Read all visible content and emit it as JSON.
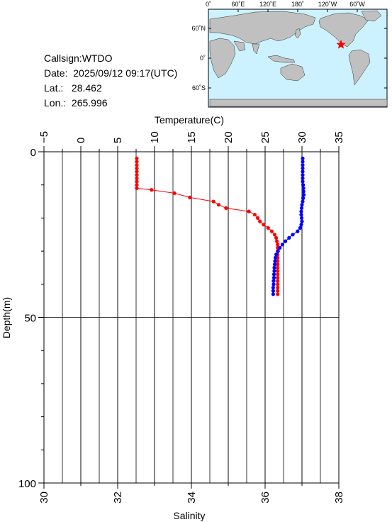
{
  "info": {
    "callsign_label": "Callsign:",
    "callsign": "WTDO",
    "date_label": "Date:",
    "date": "2025/09/12 09:17(UTC)",
    "lat_label": "Lat.:",
    "lat": "28.462",
    "lon_label": "Lon.:",
    "lon": "265.996"
  },
  "map": {
    "top_labels": [
      "0˚",
      "60˚E",
      "120˚E",
      "180˚",
      "120˚W",
      "60˚W"
    ],
    "side_labels": [
      "60˚N",
      "0˚",
      "60˚S"
    ],
    "ocean_color": "#ccf2ff",
    "land_color": "#c0c0c0",
    "marker_color": "#ff0000",
    "marker_icon": "star-icon"
  },
  "chart_data": {
    "type": "line",
    "y_axis": {
      "label": "Depth(m)",
      "range": [
        0,
        100
      ],
      "ticks": [
        "0",
        "50",
        "100"
      ],
      "inverted": true
    },
    "x_top_axis": {
      "label": "Temperature(C)",
      "range": [
        -5,
        35
      ],
      "ticks": [
        "−5",
        "0",
        "5",
        "10",
        "15",
        "20",
        "25",
        "30",
        "35"
      ]
    },
    "x_bottom_axis": {
      "label": "Salinity",
      "range": [
        30,
        38
      ],
      "ticks": [
        "30",
        "32",
        "34",
        "36",
        "38"
      ]
    },
    "grid": true,
    "series": [
      {
        "axis": "top",
        "color": "#ff0000",
        "points": [
          [
            7.6,
            2
          ],
          [
            7.6,
            3
          ],
          [
            7.6,
            4
          ],
          [
            7.6,
            5
          ],
          [
            7.6,
            6
          ],
          [
            7.6,
            7
          ],
          [
            7.6,
            8
          ],
          [
            7.6,
            9
          ],
          [
            7.6,
            10
          ],
          [
            7.6,
            11
          ],
          [
            9.6,
            11.5
          ],
          [
            12.7,
            12.5
          ],
          [
            14.8,
            13.8
          ],
          [
            18.0,
            15.0
          ],
          [
            18.7,
            16.0
          ],
          [
            19.7,
            17.0
          ],
          [
            22.8,
            18.0
          ],
          [
            23.6,
            19.0
          ],
          [
            24.0,
            20.0
          ],
          [
            24.3,
            21.0
          ],
          [
            24.8,
            22.0
          ],
          [
            25.4,
            23.0
          ],
          [
            25.9,
            24.0
          ],
          [
            26.3,
            25.0
          ],
          [
            26.5,
            26.0
          ],
          [
            26.6,
            27.0
          ],
          [
            26.7,
            28.0
          ],
          [
            26.7,
            29.0
          ],
          [
            26.7,
            30.0
          ],
          [
            26.7,
            31.0
          ],
          [
            26.7,
            32.0
          ],
          [
            26.7,
            33.0
          ],
          [
            26.7,
            34.0
          ],
          [
            26.7,
            35.0
          ],
          [
            26.7,
            36.0
          ],
          [
            26.7,
            37.0
          ],
          [
            26.7,
            38.0
          ],
          [
            26.7,
            39.0
          ],
          [
            26.7,
            40.0
          ],
          [
            26.7,
            41.0
          ],
          [
            26.7,
            42.0
          ],
          [
            26.7,
            43.0
          ]
        ]
      },
      {
        "axis": "bottom",
        "color": "#0000ff",
        "points": [
          [
            37.02,
            2
          ],
          [
            37.02,
            3
          ],
          [
            37.02,
            4
          ],
          [
            37.02,
            5
          ],
          [
            37.02,
            6
          ],
          [
            37.02,
            7
          ],
          [
            37.02,
            8
          ],
          [
            37.02,
            9
          ],
          [
            37.03,
            10
          ],
          [
            37.04,
            11
          ],
          [
            37.04,
            12
          ],
          [
            37.05,
            13
          ],
          [
            37.03,
            14
          ],
          [
            37.02,
            15
          ],
          [
            37.0,
            16
          ],
          [
            36.99,
            17
          ],
          [
            36.98,
            18
          ],
          [
            36.98,
            19
          ],
          [
            36.99,
            20
          ],
          [
            37.0,
            21
          ],
          [
            36.98,
            22
          ],
          [
            36.95,
            23
          ],
          [
            36.88,
            24
          ],
          [
            36.75,
            25
          ],
          [
            36.65,
            26
          ],
          [
            36.55,
            27
          ],
          [
            36.47,
            28
          ],
          [
            36.4,
            29
          ],
          [
            36.35,
            30
          ],
          [
            36.3,
            31
          ],
          [
            36.28,
            32
          ],
          [
            36.27,
            33
          ],
          [
            36.26,
            34
          ],
          [
            36.25,
            35
          ],
          [
            36.25,
            36
          ],
          [
            36.24,
            37
          ],
          [
            36.24,
            38
          ],
          [
            36.23,
            39
          ],
          [
            36.23,
            40
          ],
          [
            36.22,
            41
          ],
          [
            36.22,
            42
          ],
          [
            36.22,
            43
          ]
        ]
      }
    ]
  }
}
